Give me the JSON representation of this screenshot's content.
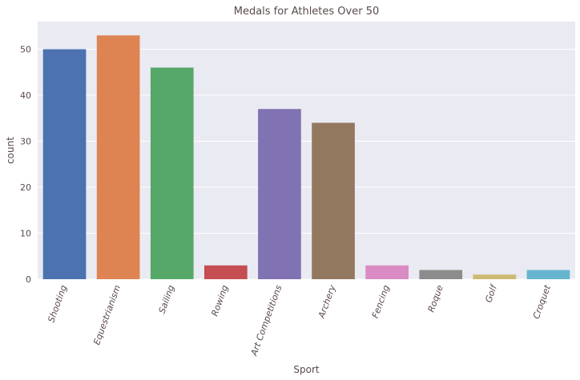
{
  "chart_data": {
    "type": "bar",
    "title": "Medals for Athletes Over 50",
    "xlabel": "Sport",
    "ylabel": "count",
    "categories": [
      "Shooting",
      "Equestrianism",
      "Sailing",
      "Rowing",
      "Art Competitions",
      "Archery",
      "Fencing",
      "Roque",
      "Golf",
      "Croquet"
    ],
    "values": [
      50,
      53,
      46,
      3,
      37,
      34,
      3,
      2,
      1,
      2
    ],
    "colors": [
      "#4c72b0",
      "#dd8452",
      "#55a868",
      "#c44e52",
      "#8172b3",
      "#937860",
      "#da8bc3",
      "#8c8c8c",
      "#ccb974",
      "#64b5cd"
    ],
    "ylim": [
      0,
      56
    ],
    "yticks": [
      0,
      10,
      20,
      30,
      40,
      50
    ],
    "grid": true,
    "background": "#eaeaf2"
  }
}
